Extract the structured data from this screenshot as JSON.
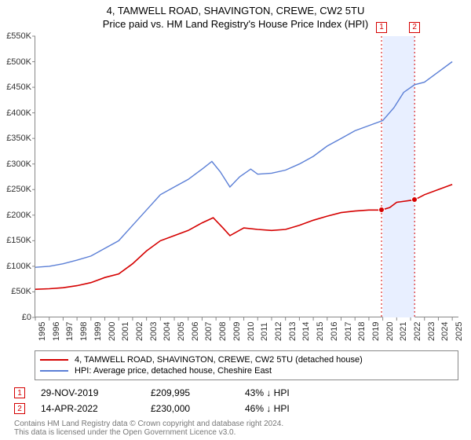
{
  "titles": {
    "line1": "4, TAMWELL ROAD, SHAVINGTON, CREWE, CW2 5TU",
    "line2": "Price paid vs. HM Land Registry's House Price Index (HPI)"
  },
  "chart": {
    "type": "line",
    "background_color": "#ffffff",
    "axis_color": "#888888",
    "xlim": [
      1995,
      2025.5
    ],
    "ylim": [
      0,
      550000
    ],
    "y_ticks": [
      0,
      50000,
      100000,
      150000,
      200000,
      250000,
      300000,
      350000,
      400000,
      450000,
      500000,
      550000
    ],
    "y_tick_labels": [
      "£0",
      "£50K",
      "£100K",
      "£150K",
      "£200K",
      "£250K",
      "£300K",
      "£350K",
      "£400K",
      "£450K",
      "£500K",
      "£550K"
    ],
    "x_ticks": [
      1995,
      1996,
      1997,
      1998,
      1999,
      2000,
      2001,
      2002,
      2003,
      2004,
      2005,
      2006,
      2007,
      2008,
      2009,
      2010,
      2011,
      2012,
      2013,
      2014,
      2015,
      2016,
      2017,
      2018,
      2019,
      2020,
      2021,
      2022,
      2023,
      2024,
      2025
    ],
    "y_label_fontsize": 11,
    "x_label_fontsize": 11,
    "band": {
      "start": 2020,
      "end": 2022.3,
      "fill": "#e8efff"
    },
    "series_property": {
      "name": "4, TAMWELL ROAD, SHAVINGTON, CREWE, CW2 5TU (detached house)",
      "color": "#d50000",
      "line_width": 1.6,
      "data": [
        [
          1995,
          55000
        ],
        [
          1996,
          56000
        ],
        [
          1997,
          58000
        ],
        [
          1998,
          62000
        ],
        [
          1999,
          68000
        ],
        [
          2000,
          78000
        ],
        [
          2001,
          85000
        ],
        [
          2002,
          105000
        ],
        [
          2003,
          130000
        ],
        [
          2004,
          150000
        ],
        [
          2005,
          160000
        ],
        [
          2006,
          170000
        ],
        [
          2007,
          185000
        ],
        [
          2007.8,
          195000
        ],
        [
          2008.5,
          175000
        ],
        [
          2009,
          160000
        ],
        [
          2010,
          175000
        ],
        [
          2011,
          172000
        ],
        [
          2012,
          170000
        ],
        [
          2013,
          172000
        ],
        [
          2014,
          180000
        ],
        [
          2015,
          190000
        ],
        [
          2016,
          198000
        ],
        [
          2017,
          205000
        ],
        [
          2018,
          208000
        ],
        [
          2019,
          210000
        ],
        [
          2019.9,
          209995
        ],
        [
          2020.5,
          215000
        ],
        [
          2021,
          225000
        ],
        [
          2022.29,
          230000
        ],
        [
          2023,
          240000
        ],
        [
          2024,
          250000
        ],
        [
          2025,
          260000
        ]
      ]
    },
    "series_hpi": {
      "name": "HPI: Average price, detached house, Cheshire East",
      "color": "#5b7fd6",
      "line_width": 1.4,
      "data": [
        [
          1995,
          98000
        ],
        [
          1996,
          100000
        ],
        [
          1997,
          105000
        ],
        [
          1998,
          112000
        ],
        [
          1999,
          120000
        ],
        [
          2000,
          135000
        ],
        [
          2001,
          150000
        ],
        [
          2002,
          180000
        ],
        [
          2003,
          210000
        ],
        [
          2004,
          240000
        ],
        [
          2005,
          255000
        ],
        [
          2006,
          270000
        ],
        [
          2007,
          290000
        ],
        [
          2007.7,
          305000
        ],
        [
          2008.3,
          285000
        ],
        [
          2009,
          255000
        ],
        [
          2009.7,
          275000
        ],
        [
          2010.5,
          290000
        ],
        [
          2011,
          280000
        ],
        [
          2012,
          282000
        ],
        [
          2013,
          288000
        ],
        [
          2014,
          300000
        ],
        [
          2015,
          315000
        ],
        [
          2016,
          335000
        ],
        [
          2017,
          350000
        ],
        [
          2018,
          365000
        ],
        [
          2019,
          375000
        ],
        [
          2020,
          385000
        ],
        [
          2020.8,
          410000
        ],
        [
          2021.5,
          440000
        ],
        [
          2022.29,
          455000
        ],
        [
          2023,
          460000
        ],
        [
          2024,
          480000
        ],
        [
          2025,
          500000
        ]
      ]
    },
    "sales_points": [
      {
        "index": "1",
        "x": 2019.91,
        "y": 209995,
        "color": "#d50000"
      },
      {
        "index": "2",
        "x": 2022.29,
        "y": 230000,
        "color": "#d50000"
      }
    ],
    "annot_lines": [
      {
        "x": 2019.91,
        "color": "#d50000",
        "dash": "2,3"
      },
      {
        "x": 2022.29,
        "color": "#d50000",
        "dash": "2,3"
      }
    ]
  },
  "legend": {
    "rows": [
      {
        "color": "#d50000",
        "label": "4, TAMWELL ROAD, SHAVINGTON, CREWE, CW2 5TU (detached house)"
      },
      {
        "color": "#5b7fd6",
        "label": "HPI: Average price, detached house, Cheshire East"
      }
    ]
  },
  "sales": [
    {
      "idx": "1",
      "date": "29-NOV-2019",
      "price": "£209,995",
      "diff": "43% ↓ HPI",
      "color": "#d50000"
    },
    {
      "idx": "2",
      "date": "14-APR-2022",
      "price": "£230,000",
      "diff": "46% ↓ HPI",
      "color": "#d50000"
    }
  ],
  "footer": {
    "line1": "Contains HM Land Registry data © Crown copyright and database right 2024.",
    "line2": "This data is licensed under the Open Government Licence v3.0."
  }
}
